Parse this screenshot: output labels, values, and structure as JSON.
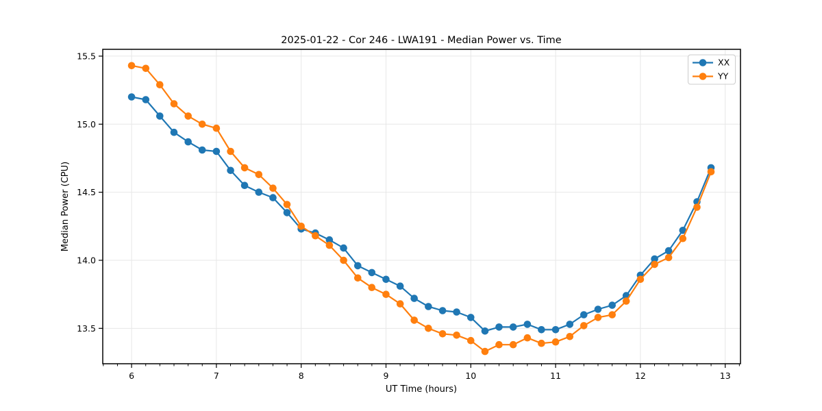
{
  "chart_data": {
    "type": "line",
    "title": "2025-01-22 - Cor 246 - LWA191 - Median Power vs. Time",
    "xlabel": "UT Time (hours)",
    "ylabel": "Median Power (CPU)",
    "xlim": [
      5.66,
      13.18
    ],
    "ylim": [
      13.24,
      15.55
    ],
    "x_ticks": [
      6,
      7,
      8,
      9,
      10,
      11,
      12,
      13
    ],
    "x_tick_labels": [
      "6",
      "7",
      "8",
      "9",
      "10",
      "11",
      "12",
      "13"
    ],
    "x_minor_ticks_per_interval": 6,
    "y_ticks": [
      13.5,
      14.0,
      14.5,
      15.0,
      15.5
    ],
    "y_tick_labels": [
      "13.5",
      "14.0",
      "14.5",
      "15.0",
      "15.5"
    ],
    "grid": true,
    "grid_color": "#e7e7e7",
    "legend_position": "upper right",
    "x": [
      6.0,
      6.167,
      6.333,
      6.5,
      6.667,
      6.833,
      7.0,
      7.167,
      7.333,
      7.5,
      7.667,
      7.833,
      8.0,
      8.167,
      8.333,
      8.5,
      8.667,
      8.833,
      9.0,
      9.167,
      9.333,
      9.5,
      9.667,
      9.833,
      10.0,
      10.167,
      10.333,
      10.5,
      10.667,
      10.833,
      11.0,
      11.167,
      11.333,
      11.5,
      11.667,
      11.833,
      12.0,
      12.167,
      12.333,
      12.5,
      12.667,
      12.833
    ],
    "series": [
      {
        "name": "XX",
        "color": "#1f77b4",
        "values": [
          15.2,
          15.18,
          15.06,
          14.94,
          14.87,
          14.81,
          14.8,
          14.66,
          14.55,
          14.5,
          14.46,
          14.35,
          14.23,
          14.2,
          14.15,
          14.09,
          13.96,
          13.91,
          13.86,
          13.81,
          13.72,
          13.66,
          13.63,
          13.62,
          13.58,
          13.48,
          13.51,
          13.51,
          13.53,
          13.49,
          13.49,
          13.53,
          13.6,
          13.64,
          13.67,
          13.74,
          13.89,
          14.01,
          14.07,
          14.22,
          14.43,
          14.68
        ]
      },
      {
        "name": "YY",
        "color": "#ff7f0e",
        "values": [
          15.43,
          15.41,
          15.29,
          15.15,
          15.06,
          15.0,
          14.97,
          14.8,
          14.68,
          14.63,
          14.53,
          14.41,
          14.25,
          14.18,
          14.11,
          14.0,
          13.87,
          13.8,
          13.75,
          13.68,
          13.56,
          13.5,
          13.46,
          13.45,
          13.41,
          13.33,
          13.38,
          13.38,
          13.43,
          13.39,
          13.4,
          13.44,
          13.52,
          13.58,
          13.6,
          13.7,
          13.86,
          13.97,
          14.02,
          14.16,
          14.39,
          14.65
        ]
      }
    ]
  }
}
